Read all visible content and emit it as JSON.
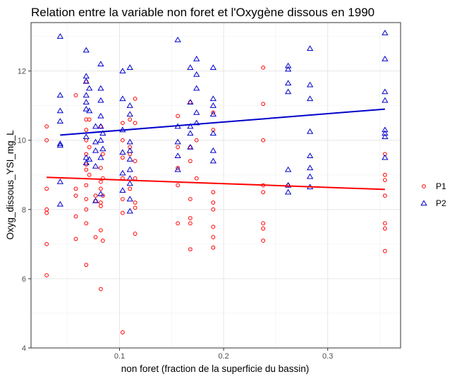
{
  "chart_data": {
    "type": "scatter",
    "title": "Relation entre la variable non foret et l'Oxygène dissous en 1990",
    "xlabel": "non foret (fraction de la superficie du bassin)",
    "ylabel": "Oxyg_dissous_YSI_mg_L",
    "xlim": [
      0.015,
      0.37
    ],
    "ylim": [
      4.0,
      13.4
    ],
    "x_ticks": [
      0.1,
      0.2,
      0.3
    ],
    "x_tick_labels": [
      "0.1",
      "0.2",
      "0.3"
    ],
    "y_ticks": [
      4,
      6,
      8,
      10,
      12
    ],
    "y_tick_labels": [
      "4",
      "6",
      "8",
      "10",
      "12"
    ],
    "grid": true,
    "legend_position": "right",
    "series": [
      {
        "name": "P1",
        "marker": "circle",
        "color": "#ff0000",
        "points": [
          [
            0.03,
            10.4
          ],
          [
            0.03,
            10.0
          ],
          [
            0.03,
            8.6
          ],
          [
            0.03,
            8.0
          ],
          [
            0.03,
            7.9
          ],
          [
            0.03,
            7.0
          ],
          [
            0.03,
            6.1
          ],
          [
            0.058,
            11.3
          ],
          [
            0.058,
            8.6
          ],
          [
            0.058,
            8.4
          ],
          [
            0.058,
            7.8
          ],
          [
            0.058,
            7.15
          ],
          [
            0.068,
            11.7
          ],
          [
            0.068,
            10.6
          ],
          [
            0.068,
            10.3
          ],
          [
            0.068,
            10.0
          ],
          [
            0.068,
            9.6
          ],
          [
            0.068,
            9.3
          ],
          [
            0.068,
            9.15
          ],
          [
            0.068,
            8.7
          ],
          [
            0.068,
            8.3
          ],
          [
            0.068,
            8.0
          ],
          [
            0.068,
            7.6
          ],
          [
            0.068,
            6.4
          ],
          [
            0.071,
            10.6
          ],
          [
            0.071,
            9.8
          ],
          [
            0.071,
            9.0
          ],
          [
            0.077,
            8.4
          ],
          [
            0.077,
            8.25
          ],
          [
            0.077,
            7.2
          ],
          [
            0.082,
            10.4
          ],
          [
            0.082,
            9.2
          ],
          [
            0.082,
            8.8
          ],
          [
            0.082,
            8.6
          ],
          [
            0.082,
            8.2
          ],
          [
            0.082,
            8.1
          ],
          [
            0.082,
            7.4
          ],
          [
            0.082,
            5.7
          ],
          [
            0.084,
            9.6
          ],
          [
            0.084,
            8.9
          ],
          [
            0.084,
            8.4
          ],
          [
            0.084,
            7.1
          ],
          [
            0.103,
            10.5
          ],
          [
            0.103,
            10.0
          ],
          [
            0.103,
            9.5
          ],
          [
            0.103,
            8.9
          ],
          [
            0.103,
            8.3
          ],
          [
            0.103,
            7.9
          ],
          [
            0.103,
            4.45
          ],
          [
            0.11,
            10.6
          ],
          [
            0.11,
            9.8
          ],
          [
            0.11,
            9.6
          ],
          [
            0.11,
            8.6
          ],
          [
            0.115,
            11.2
          ],
          [
            0.115,
            10.5
          ],
          [
            0.115,
            9.4
          ],
          [
            0.115,
            8.9
          ],
          [
            0.115,
            8.2
          ],
          [
            0.115,
            8.05
          ],
          [
            0.115,
            7.3
          ],
          [
            0.156,
            10.7
          ],
          [
            0.156,
            9.8
          ],
          [
            0.156,
            9.2
          ],
          [
            0.156,
            8.7
          ],
          [
            0.156,
            7.6
          ],
          [
            0.168,
            11.1
          ],
          [
            0.168,
            9.8
          ],
          [
            0.168,
            9.4
          ],
          [
            0.168,
            8.3
          ],
          [
            0.168,
            7.75
          ],
          [
            0.168,
            7.6
          ],
          [
            0.168,
            6.85
          ],
          [
            0.174,
            10.0
          ],
          [
            0.174,
            8.9
          ],
          [
            0.19,
            10.8
          ],
          [
            0.19,
            10.3
          ],
          [
            0.19,
            8.5
          ],
          [
            0.19,
            8.2
          ],
          [
            0.19,
            8.0
          ],
          [
            0.19,
            7.5
          ],
          [
            0.19,
            7.2
          ],
          [
            0.19,
            6.9
          ],
          [
            0.238,
            12.1
          ],
          [
            0.238,
            11.05
          ],
          [
            0.238,
            10.0
          ],
          [
            0.238,
            8.7
          ],
          [
            0.238,
            8.5
          ],
          [
            0.238,
            7.6
          ],
          [
            0.238,
            7.45
          ],
          [
            0.238,
            7.1
          ],
          [
            0.262,
            8.7
          ],
          [
            0.355,
            9.6
          ],
          [
            0.355,
            9.0
          ],
          [
            0.355,
            8.85
          ],
          [
            0.355,
            8.4
          ],
          [
            0.355,
            7.6
          ],
          [
            0.355,
            7.45
          ],
          [
            0.355,
            6.8
          ]
        ],
        "trend": [
          [
            0.03,
            8.93
          ],
          [
            0.355,
            8.58
          ]
        ]
      },
      {
        "name": "P2",
        "marker": "triangle",
        "color": "#0000cc",
        "points": [
          [
            0.043,
            13.0
          ],
          [
            0.043,
            11.3
          ],
          [
            0.043,
            10.85
          ],
          [
            0.043,
            10.55
          ],
          [
            0.043,
            9.9
          ],
          [
            0.043,
            9.85
          ],
          [
            0.043,
            8.8
          ],
          [
            0.043,
            8.15
          ],
          [
            0.068,
            12.6
          ],
          [
            0.068,
            11.85
          ],
          [
            0.068,
            11.7
          ],
          [
            0.068,
            11.3
          ],
          [
            0.068,
            11.1
          ],
          [
            0.068,
            10.9
          ],
          [
            0.068,
            10.1
          ],
          [
            0.068,
            9.5
          ],
          [
            0.068,
            9.35
          ],
          [
            0.071,
            11.5
          ],
          [
            0.071,
            10.85
          ],
          [
            0.071,
            9.45
          ],
          [
            0.077,
            10.4
          ],
          [
            0.077,
            9.95
          ],
          [
            0.077,
            9.7
          ],
          [
            0.077,
            9.25
          ],
          [
            0.077,
            8.25
          ],
          [
            0.082,
            12.2
          ],
          [
            0.082,
            11.5
          ],
          [
            0.082,
            11.15
          ],
          [
            0.082,
            10.7
          ],
          [
            0.082,
            10.4
          ],
          [
            0.082,
            10.0
          ],
          [
            0.082,
            9.5
          ],
          [
            0.082,
            8.45
          ],
          [
            0.084,
            10.2
          ],
          [
            0.084,
            9.75
          ],
          [
            0.103,
            12.0
          ],
          [
            0.103,
            11.2
          ],
          [
            0.103,
            10.3
          ],
          [
            0.103,
            9.65
          ],
          [
            0.103,
            9.05
          ],
          [
            0.103,
            8.55
          ],
          [
            0.11,
            12.1
          ],
          [
            0.11,
            11.0
          ],
          [
            0.11,
            10.75
          ],
          [
            0.11,
            9.95
          ],
          [
            0.11,
            9.7
          ],
          [
            0.11,
            9.45
          ],
          [
            0.11,
            9.15
          ],
          [
            0.11,
            8.9
          ],
          [
            0.11,
            8.75
          ],
          [
            0.11,
            8.3
          ],
          [
            0.11,
            7.95
          ],
          [
            0.156,
            12.9
          ],
          [
            0.156,
            10.4
          ],
          [
            0.156,
            9.95
          ],
          [
            0.156,
            9.55
          ],
          [
            0.156,
            9.15
          ],
          [
            0.168,
            12.1
          ],
          [
            0.168,
            11.1
          ],
          [
            0.168,
            10.4
          ],
          [
            0.168,
            10.2
          ],
          [
            0.168,
            9.8
          ],
          [
            0.174,
            12.35
          ],
          [
            0.174,
            11.9
          ],
          [
            0.174,
            11.5
          ],
          [
            0.174,
            10.8
          ],
          [
            0.174,
            10.5
          ],
          [
            0.19,
            12.1
          ],
          [
            0.19,
            11.2
          ],
          [
            0.19,
            11.0
          ],
          [
            0.19,
            10.75
          ],
          [
            0.19,
            10.2
          ],
          [
            0.19,
            9.7
          ],
          [
            0.19,
            9.4
          ],
          [
            0.262,
            12.15
          ],
          [
            0.262,
            12.05
          ],
          [
            0.262,
            11.65
          ],
          [
            0.262,
            11.4
          ],
          [
            0.262,
            9.15
          ],
          [
            0.262,
            8.7
          ],
          [
            0.262,
            8.5
          ],
          [
            0.283,
            12.65
          ],
          [
            0.283,
            11.6
          ],
          [
            0.283,
            11.2
          ],
          [
            0.283,
            10.25
          ],
          [
            0.283,
            9.55
          ],
          [
            0.283,
            9.2
          ],
          [
            0.283,
            8.95
          ],
          [
            0.283,
            8.65
          ],
          [
            0.355,
            13.1
          ],
          [
            0.355,
            12.35
          ],
          [
            0.355,
            11.4
          ],
          [
            0.355,
            11.15
          ],
          [
            0.355,
            10.3
          ],
          [
            0.355,
            10.2
          ],
          [
            0.355,
            10.1
          ],
          [
            0.355,
            9.5
          ]
        ],
        "trend": [
          [
            0.043,
            10.15
          ],
          [
            0.355,
            10.9
          ]
        ]
      }
    ]
  }
}
